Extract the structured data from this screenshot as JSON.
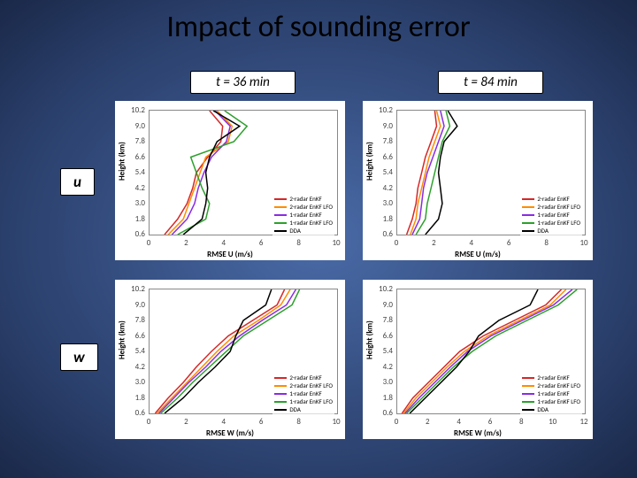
{
  "title": "Impact of sounding error",
  "time_headers": {
    "left": "t = 36 min",
    "right": "t = 84 min"
  },
  "var_labels": {
    "u": "u",
    "w": "w"
  },
  "colors": {
    "series": {
      "r2": "#d62728",
      "r2l": "#ff8c00",
      "r1": "#8a2be2",
      "r1l": "#2ca02c",
      "dda": "#000000"
    },
    "grid": "#ffffff",
    "axis": "#888888"
  },
  "legend_items": [
    {
      "key": "r2",
      "label": "2-radar EnKF"
    },
    {
      "key": "r2l",
      "label": "2-radar EnKF LFO"
    },
    {
      "key": "r1",
      "label": "1-radar EnKF"
    },
    {
      "key": "r1l",
      "label": "1-radar EnKF LFO"
    },
    {
      "key": "dda",
      "label": "DDA"
    }
  ],
  "y_axis": {
    "label": "Height (km)",
    "min": 0.6,
    "max": 10.2,
    "ticks": [
      0.6,
      1.8,
      3.0,
      4.2,
      5.4,
      6.6,
      7.8,
      9.0,
      10.2
    ]
  },
  "panels": {
    "tl": {
      "xlabel": "RMSE U (m/s)",
      "xmin": 0,
      "xmax": 10,
      "xticks": [
        0,
        2,
        4,
        6,
        8,
        10
      ],
      "legend_pos": "right-mid",
      "series": {
        "r2": {
          "h": [
            0.6,
            1.8,
            3.0,
            4.2,
            5.4,
            6.6,
            7.8,
            9.0,
            10.2
          ],
          "v": [
            0.8,
            1.5,
            2.0,
            2.3,
            2.5,
            3.1,
            3.8,
            3.9,
            3.2
          ]
        },
        "r2l": {
          "h": [
            0.6,
            1.8,
            3.0,
            4.2,
            5.4,
            6.6,
            7.8,
            9.0,
            10.2
          ],
          "v": [
            1.0,
            1.8,
            2.1,
            2.4,
            2.7,
            3.0,
            4.2,
            4.4,
            3.6
          ]
        },
        "r1": {
          "h": [
            0.6,
            1.8,
            3.0,
            4.2,
            5.4,
            6.6,
            7.8,
            9.0,
            10.2
          ],
          "v": [
            1.2,
            2.0,
            2.4,
            2.6,
            2.9,
            3.3,
            4.1,
            4.3,
            3.5
          ]
        },
        "r1l": {
          "h": [
            0.6,
            1.8,
            3.0,
            4.2,
            5.4,
            6.6,
            7.8,
            9.0,
            10.2
          ],
          "v": [
            1.5,
            3.0,
            3.2,
            2.8,
            2.5,
            2.2,
            4.5,
            5.2,
            4.0
          ]
        },
        "dda": {
          "h": [
            0.6,
            1.8,
            3.0,
            4.2,
            5.4,
            6.6,
            7.8,
            9.0,
            10.2
          ],
          "v": [
            1.8,
            2.8,
            3.0,
            3.1,
            3.0,
            3.2,
            3.6,
            4.8,
            3.4
          ]
        }
      }
    },
    "tr": {
      "xlabel": "RMSE U (m/s)",
      "xmin": 0,
      "xmax": 10,
      "xticks": [
        0,
        2,
        4,
        6,
        8,
        10
      ],
      "legend_pos": "right-mid",
      "series": {
        "r2": {
          "h": [
            0.6,
            1.8,
            3.0,
            4.2,
            5.4,
            6.6,
            7.8,
            9.0,
            10.2
          ],
          "v": [
            0.5,
            0.8,
            1.0,
            1.1,
            1.3,
            1.5,
            1.8,
            2.1,
            2.0
          ]
        },
        "r2l": {
          "h": [
            0.6,
            1.8,
            3.0,
            4.2,
            5.4,
            6.6,
            7.8,
            9.0,
            10.2
          ],
          "v": [
            0.7,
            1.0,
            1.1,
            1.3,
            1.5,
            1.7,
            2.0,
            2.3,
            2.1
          ]
        },
        "r1": {
          "h": [
            0.6,
            1.8,
            3.0,
            4.2,
            5.4,
            6.6,
            7.8,
            9.0,
            10.2
          ],
          "v": [
            0.8,
            1.2,
            1.3,
            1.4,
            1.6,
            1.9,
            2.2,
            2.5,
            2.3
          ]
        },
        "r1l": {
          "h": [
            0.6,
            1.8,
            3.0,
            4.2,
            5.4,
            6.6,
            7.8,
            9.0,
            10.2
          ],
          "v": [
            1.0,
            1.5,
            1.6,
            1.8,
            2.0,
            2.2,
            2.4,
            2.8,
            2.6
          ]
        },
        "dda": {
          "h": [
            0.6,
            1.8,
            3.0,
            4.2,
            5.4,
            6.6,
            7.8,
            9.0,
            10.2
          ],
          "v": [
            1.5,
            2.2,
            2.4,
            2.3,
            2.2,
            2.3,
            2.5,
            3.2,
            2.7
          ]
        }
      }
    },
    "bl": {
      "xlabel": "RMSE W (m/s)",
      "xmin": 0,
      "xmax": 10,
      "xticks": [
        0,
        2,
        4,
        6,
        8,
        10
      ],
      "legend_pos": "right-mid",
      "series": {
        "r2": {
          "h": [
            0.6,
            1.8,
            3.0,
            4.2,
            5.4,
            6.6,
            7.8,
            9.0,
            10.2
          ],
          "v": [
            0.3,
            1.0,
            1.8,
            2.5,
            3.3,
            4.2,
            5.5,
            6.8,
            7.2
          ]
        },
        "r2l": {
          "h": [
            0.6,
            1.8,
            3.0,
            4.2,
            5.4,
            6.6,
            7.8,
            9.0,
            10.2
          ],
          "v": [
            0.4,
            1.2,
            2.0,
            2.8,
            3.6,
            4.5,
            5.8,
            7.0,
            7.5
          ]
        },
        "r1": {
          "h": [
            0.6,
            1.8,
            3.0,
            4.2,
            5.4,
            6.6,
            7.8,
            9.0,
            10.2
          ],
          "v": [
            0.5,
            1.3,
            2.1,
            3.0,
            3.8,
            4.8,
            6.0,
            7.3,
            7.8
          ]
        },
        "r1l": {
          "h": [
            0.6,
            1.8,
            3.0,
            4.2,
            5.4,
            6.6,
            7.8,
            9.0,
            10.2
          ],
          "v": [
            0.6,
            1.5,
            2.3,
            3.2,
            4.1,
            5.0,
            6.3,
            7.6,
            8.0
          ]
        },
        "dda": {
          "h": [
            0.6,
            1.8,
            3.0,
            4.2,
            5.4,
            6.6,
            7.8,
            9.0,
            10.2
          ],
          "v": [
            0.8,
            1.8,
            2.6,
            3.5,
            4.3,
            4.6,
            5.0,
            6.2,
            6.5
          ]
        }
      }
    },
    "br": {
      "xlabel": "RMSE W (m/s)",
      "xmin": 0,
      "xmax": 12,
      "xticks": [
        0,
        2,
        4,
        6,
        8,
        10,
        12
      ],
      "legend_pos": "right-mid",
      "series": {
        "r2": {
          "h": [
            0.6,
            1.8,
            3.0,
            4.2,
            5.4,
            6.6,
            7.8,
            9.0,
            10.2
          ],
          "v": [
            0.3,
            1.0,
            2.0,
            3.0,
            4.0,
            5.5,
            7.5,
            9.5,
            10.5
          ]
        },
        "r2l": {
          "h": [
            0.6,
            1.8,
            3.0,
            4.2,
            5.4,
            6.6,
            7.8,
            9.0,
            10.2
          ],
          "v": [
            0.4,
            1.2,
            2.2,
            3.2,
            4.3,
            5.8,
            7.8,
            9.8,
            10.8
          ]
        },
        "r1": {
          "h": [
            0.6,
            1.8,
            3.0,
            4.2,
            5.4,
            6.6,
            7.8,
            9.0,
            10.2
          ],
          "v": [
            0.5,
            1.4,
            2.4,
            3.4,
            4.5,
            6.0,
            8.0,
            10.0,
            11.2
          ]
        },
        "r1l": {
          "h": [
            0.6,
            1.8,
            3.0,
            4.2,
            5.4,
            6.6,
            7.8,
            9.0,
            10.2
          ],
          "v": [
            0.6,
            1.6,
            2.6,
            3.6,
            4.8,
            6.3,
            8.3,
            10.3,
            11.5
          ]
        },
        "dda": {
          "h": [
            0.6,
            1.8,
            3.0,
            4.2,
            5.4,
            6.6,
            7.8,
            9.0,
            10.2
          ],
          "v": [
            0.8,
            1.8,
            2.8,
            3.8,
            4.6,
            5.2,
            6.5,
            8.5,
            9.0
          ]
        }
      }
    }
  }
}
